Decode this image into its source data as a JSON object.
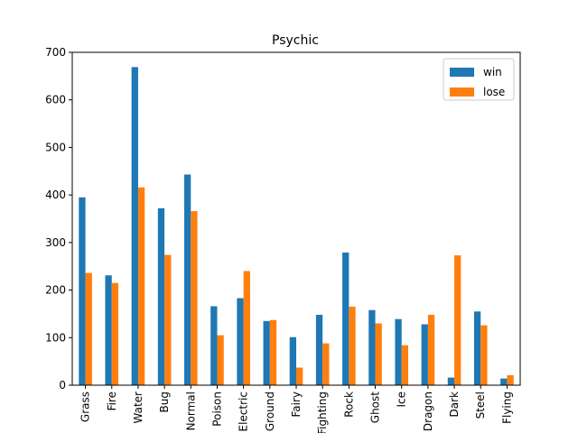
{
  "chart_data": {
    "type": "bar",
    "title": "Psychic",
    "xlabel": "",
    "ylabel": "",
    "ylim": [
      0,
      700
    ],
    "yticks": [
      0,
      100,
      200,
      300,
      400,
      500,
      600,
      700
    ],
    "categories": [
      "Grass",
      "Fire",
      "Water",
      "Bug",
      "Normal",
      "Poison",
      "Electric",
      "Ground",
      "Fairy",
      "Fighting",
      "Rock",
      "Ghost",
      "Ice",
      "Dragon",
      "Dark",
      "Steel",
      "Flying"
    ],
    "series": [
      {
        "name": "win",
        "color": "#1f77b4",
        "values": [
          395,
          231,
          669,
          372,
          443,
          166,
          183,
          135,
          101,
          148,
          279,
          158,
          139,
          128,
          16,
          155,
          14
        ]
      },
      {
        "name": "lose",
        "color": "#ff7f0e",
        "values": [
          236,
          215,
          416,
          274,
          366,
          105,
          240,
          137,
          37,
          88,
          165,
          130,
          84,
          148,
          273,
          126,
          21
        ]
      }
    ],
    "legend_position": "top-right",
    "grid": false
  }
}
